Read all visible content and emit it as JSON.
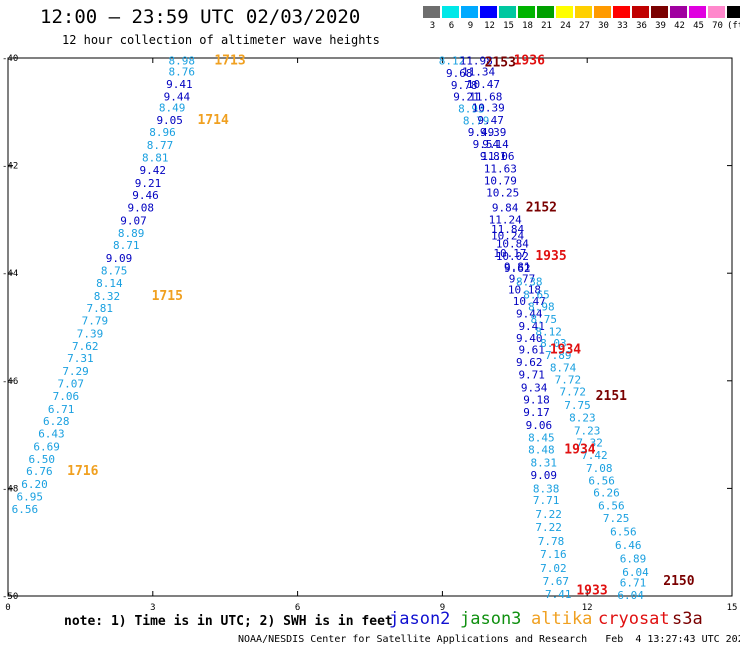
{
  "header": {
    "title": "12:00 – 23:59 UTC 02/03/2020",
    "subtitle": "12 hour collection of altimeter wave heights"
  },
  "colorbar": {
    "swatches": [
      "#6e6e6e",
      "#00e8e8",
      "#00aaff",
      "#0000ff",
      "#00c8a0",
      "#00b400",
      "#00a000",
      "#ffff00",
      "#ffd000",
      "#ff9a00",
      "#ff0000",
      "#c00000",
      "#7a0000",
      "#a000a0",
      "#e000e0",
      "#ff88cc",
      "#000000"
    ],
    "labels": [
      "3",
      "6",
      "9",
      "12",
      "15",
      "18",
      "21",
      "24",
      "27",
      "30",
      "33",
      "36",
      "39",
      "42",
      "45",
      "70",
      "(ft)"
    ]
  },
  "note": "note: 1) Time is in UTC; 2) SWH is in feet",
  "footer": "NOAA/NESDIS Center for Satellite Applications and Research   Feb  4 13:27:43 UTC 2020",
  "legend": [
    {
      "name": "jason2",
      "color": "#1010d0"
    },
    {
      "name": "jason3",
      "color": "#109010"
    },
    {
      "name": "altika",
      "color": "#f0a020"
    },
    {
      "name": "cryosat",
      "color": "#e01010"
    },
    {
      "name": "s3a",
      "color": "#7a0000"
    }
  ],
  "chart_data": {
    "type": "scatter",
    "x_ticks": [
      "0",
      "3",
      "6",
      "9",
      "12",
      "15"
    ],
    "y_ticks": [
      "-40",
      "-42",
      "-44",
      "-46",
      "-48",
      "-50"
    ],
    "xlim": [
      0,
      15
    ],
    "ylim": [
      -50,
      -40
    ],
    "colors": {
      "cyan": "#1aa0e0",
      "blue": "#0000c0",
      "orange": "#f0a020",
      "red": "#e01010",
      "darkred": "#7a0000"
    },
    "points": [
      {
        "x": 3.6,
        "y": -40.05,
        "t": "8.98",
        "c": "cyan"
      },
      {
        "x": 3.6,
        "y": -40.25,
        "t": "8.76",
        "c": "cyan"
      },
      {
        "x": 3.55,
        "y": -40.48,
        "t": "9.41",
        "c": "blue"
      },
      {
        "x": 3.5,
        "y": -40.72,
        "t": "9.44",
        "c": "blue"
      },
      {
        "x": 3.4,
        "y": -40.92,
        "t": "8.49",
        "c": "cyan"
      },
      {
        "x": 3.35,
        "y": -41.15,
        "t": "9.05",
        "c": "blue"
      },
      {
        "x": 3.2,
        "y": -41.38,
        "t": "8.96",
        "c": "cyan"
      },
      {
        "x": 3.15,
        "y": -41.62,
        "t": "8.77",
        "c": "cyan"
      },
      {
        "x": 3.05,
        "y": -41.85,
        "t": "8.81",
        "c": "cyan"
      },
      {
        "x": 3.0,
        "y": -42.08,
        "t": "9.42",
        "c": "blue"
      },
      {
        "x": 2.9,
        "y": -42.32,
        "t": "9.21",
        "c": "blue"
      },
      {
        "x": 2.85,
        "y": -42.55,
        "t": "9.46",
        "c": "blue"
      },
      {
        "x": 2.75,
        "y": -42.78,
        "t": "9.08",
        "c": "blue"
      },
      {
        "x": 2.6,
        "y": -43.02,
        "t": "9.07",
        "c": "blue"
      },
      {
        "x": 2.55,
        "y": -43.25,
        "t": "8.89",
        "c": "cyan"
      },
      {
        "x": 2.45,
        "y": -43.48,
        "t": "8.71",
        "c": "cyan"
      },
      {
        "x": 2.3,
        "y": -43.72,
        "t": "9.09",
        "c": "blue"
      },
      {
        "x": 2.2,
        "y": -43.95,
        "t": "8.75",
        "c": "cyan"
      },
      {
        "x": 2.1,
        "y": -44.18,
        "t": "8.14",
        "c": "cyan"
      },
      {
        "x": 2.05,
        "y": -44.42,
        "t": "8.32",
        "c": "cyan"
      },
      {
        "x": 1.9,
        "y": -44.65,
        "t": "7.81",
        "c": "cyan"
      },
      {
        "x": 1.8,
        "y": -44.88,
        "t": "7.79",
        "c": "cyan"
      },
      {
        "x": 1.7,
        "y": -45.12,
        "t": "7.39",
        "c": "cyan"
      },
      {
        "x": 1.6,
        "y": -45.35,
        "t": "7.62",
        "c": "cyan"
      },
      {
        "x": 1.5,
        "y": -45.58,
        "t": "7.31",
        "c": "cyan"
      },
      {
        "x": 1.4,
        "y": -45.82,
        "t": "7.29",
        "c": "cyan"
      },
      {
        "x": 1.3,
        "y": -46.05,
        "t": "7.07",
        "c": "cyan"
      },
      {
        "x": 1.2,
        "y": -46.28,
        "t": "7.06",
        "c": "cyan"
      },
      {
        "x": 1.1,
        "y": -46.52,
        "t": "6.71",
        "c": "cyan"
      },
      {
        "x": 1.0,
        "y": -46.75,
        "t": "6.28",
        "c": "cyan"
      },
      {
        "x": 0.9,
        "y": -46.98,
        "t": "6.43",
        "c": "cyan"
      },
      {
        "x": 0.8,
        "y": -47.22,
        "t": "6.69",
        "c": "cyan"
      },
      {
        "x": 0.7,
        "y": -47.45,
        "t": "6.50",
        "c": "cyan"
      },
      {
        "x": 0.65,
        "y": -47.68,
        "t": "6.76",
        "c": "cyan"
      },
      {
        "x": 0.55,
        "y": -47.92,
        "t": "6.20",
        "c": "cyan"
      },
      {
        "x": 0.45,
        "y": -48.15,
        "t": "6.95",
        "c": "cyan"
      },
      {
        "x": 0.35,
        "y": -48.38,
        "t": "6.56",
        "c": "cyan"
      },
      {
        "x": 4.6,
        "y": -40.05,
        "t": "1713",
        "c": "orange",
        "label": true
      },
      {
        "x": 4.25,
        "y": -41.15,
        "t": "1714",
        "c": "orange",
        "label": true
      },
      {
        "x": 3.3,
        "y": -44.42,
        "t": "1715",
        "c": "orange",
        "label": true
      },
      {
        "x": 1.55,
        "y": -47.68,
        "t": "1716",
        "c": "orange",
        "label": true
      },
      {
        "x": 9.2,
        "y": -40.05,
        "t": "8.12",
        "c": "cyan"
      },
      {
        "x": 9.35,
        "y": -40.28,
        "t": "9.68",
        "c": "blue"
      },
      {
        "x": 9.45,
        "y": -40.5,
        "t": "9.78",
        "c": "blue"
      },
      {
        "x": 9.5,
        "y": -40.72,
        "t": "9.21",
        "c": "blue"
      },
      {
        "x": 9.6,
        "y": -40.94,
        "t": "8.93",
        "c": "cyan"
      },
      {
        "x": 9.7,
        "y": -41.16,
        "t": "8.79",
        "c": "cyan"
      },
      {
        "x": 9.8,
        "y": -41.38,
        "t": "9.49",
        "c": "blue"
      },
      {
        "x": 9.9,
        "y": -41.6,
        "t": "9.54",
        "c": "blue"
      },
      {
        "x": 10.05,
        "y": -41.82,
        "t": "9.81",
        "c": "blue"
      },
      {
        "x": 10.2,
        "y": -42.28,
        "t": "10.79",
        "c": "blue"
      },
      {
        "x": 10.3,
        "y": -42.78,
        "t": "9.84",
        "c": "blue"
      },
      {
        "x": 10.35,
        "y": -43.3,
        "t": "10.24",
        "c": "blue"
      },
      {
        "x": 10.4,
        "y": -43.62,
        "t": "10.17",
        "c": "blue"
      },
      {
        "x": 10.55,
        "y": -43.88,
        "t": "9.81",
        "c": "blue"
      },
      {
        "x": 10.65,
        "y": -44.1,
        "t": "9.77",
        "c": "blue"
      },
      {
        "x": 10.7,
        "y": -44.3,
        "t": "10.18",
        "c": "blue"
      },
      {
        "x": 10.8,
        "y": -44.52,
        "t": "10.47",
        "c": "blue"
      },
      {
        "x": 10.8,
        "y": -44.75,
        "t": "9.44",
        "c": "blue"
      },
      {
        "x": 10.85,
        "y": -44.98,
        "t": "9.41",
        "c": "blue"
      },
      {
        "x": 10.8,
        "y": -45.2,
        "t": "9.40",
        "c": "blue"
      },
      {
        "x": 10.85,
        "y": -45.42,
        "t": "9.61",
        "c": "blue"
      },
      {
        "x": 10.8,
        "y": -45.65,
        "t": "9.62",
        "c": "blue"
      },
      {
        "x": 10.85,
        "y": -45.88,
        "t": "9.71",
        "c": "blue"
      },
      {
        "x": 10.9,
        "y": -46.12,
        "t": "9.34",
        "c": "blue"
      },
      {
        "x": 10.95,
        "y": -46.35,
        "t": "9.18",
        "c": "blue"
      },
      {
        "x": 10.95,
        "y": -46.58,
        "t": "9.17",
        "c": "blue"
      },
      {
        "x": 11.0,
        "y": -46.82,
        "t": "9.06",
        "c": "blue"
      },
      {
        "x": 11.05,
        "y": -47.05,
        "t": "8.45",
        "c": "cyan"
      },
      {
        "x": 11.05,
        "y": -47.28,
        "t": "8.48",
        "c": "cyan"
      },
      {
        "x": 11.1,
        "y": -47.52,
        "t": "8.31",
        "c": "cyan"
      },
      {
        "x": 11.1,
        "y": -47.75,
        "t": "9.09",
        "c": "blue"
      },
      {
        "x": 11.15,
        "y": -48.0,
        "t": "8.38",
        "c": "cyan"
      },
      {
        "x": 11.15,
        "y": -48.22,
        "t": "7.71",
        "c": "cyan"
      },
      {
        "x": 11.2,
        "y": -48.48,
        "t": "7.22",
        "c": "cyan"
      },
      {
        "x": 11.2,
        "y": -48.72,
        "t": "7.22",
        "c": "cyan"
      },
      {
        "x": 11.25,
        "y": -48.98,
        "t": "7.78",
        "c": "cyan"
      },
      {
        "x": 11.3,
        "y": -49.22,
        "t": "7.16",
        "c": "cyan"
      },
      {
        "x": 11.3,
        "y": -49.48,
        "t": "7.02",
        "c": "cyan"
      },
      {
        "x": 11.35,
        "y": -49.72,
        "t": "7.67",
        "c": "cyan"
      },
      {
        "x": 11.4,
        "y": -49.96,
        "t": "7.41",
        "c": "cyan"
      },
      {
        "x": 9.7,
        "y": -40.05,
        "t": "11.98",
        "c": "blue"
      },
      {
        "x": 9.75,
        "y": -40.25,
        "t": "11.34",
        "c": "blue"
      },
      {
        "x": 9.85,
        "y": -40.48,
        "t": "10.47",
        "c": "blue"
      },
      {
        "x": 9.9,
        "y": -40.72,
        "t": "11.68",
        "c": "blue"
      },
      {
        "x": 9.95,
        "y": -40.92,
        "t": "10.39",
        "c": "blue"
      },
      {
        "x": 10.0,
        "y": -41.15,
        "t": "9.47",
        "c": "blue"
      },
      {
        "x": 10.05,
        "y": -41.38,
        "t": "9.39",
        "c": "blue"
      },
      {
        "x": 10.1,
        "y": -41.6,
        "t": "9.14",
        "c": "blue"
      },
      {
        "x": 10.15,
        "y": -41.82,
        "t": "11.06",
        "c": "blue"
      },
      {
        "x": 10.2,
        "y": -42.05,
        "t": "11.63",
        "c": "blue"
      },
      {
        "x": 10.25,
        "y": -42.5,
        "t": "10.25",
        "c": "blue"
      },
      {
        "x": 10.3,
        "y": -43.0,
        "t": "11.24",
        "c": "blue"
      },
      {
        "x": 10.35,
        "y": -43.18,
        "t": "11.84",
        "c": "blue"
      },
      {
        "x": 10.45,
        "y": -43.45,
        "t": "10.84",
        "c": "blue"
      },
      {
        "x": 10.45,
        "y": -43.68,
        "t": "10.02",
        "c": "blue"
      },
      {
        "x": 10.55,
        "y": -43.9,
        "t": "9.62",
        "c": "blue"
      },
      {
        "x": 10.8,
        "y": -44.15,
        "t": "8.38",
        "c": "cyan"
      },
      {
        "x": 10.95,
        "y": -44.4,
        "t": "8.65",
        "c": "cyan"
      },
      {
        "x": 11.05,
        "y": -44.62,
        "t": "8.98",
        "c": "cyan"
      },
      {
        "x": 11.1,
        "y": -44.85,
        "t": "8.75",
        "c": "cyan"
      },
      {
        "x": 11.2,
        "y": -45.08,
        "t": "8.12",
        "c": "cyan"
      },
      {
        "x": 11.3,
        "y": -45.3,
        "t": "8.03",
        "c": "cyan"
      },
      {
        "x": 11.4,
        "y": -45.52,
        "t": "7.89",
        "c": "cyan"
      },
      {
        "x": 11.5,
        "y": -45.75,
        "t": "8.74",
        "c": "cyan"
      },
      {
        "x": 11.6,
        "y": -45.98,
        "t": "7.72",
        "c": "cyan"
      },
      {
        "x": 11.7,
        "y": -46.2,
        "t": "7.72",
        "c": "cyan"
      },
      {
        "x": 11.8,
        "y": -46.45,
        "t": "7.75",
        "c": "cyan"
      },
      {
        "x": 11.9,
        "y": -46.68,
        "t": "8.23",
        "c": "cyan"
      },
      {
        "x": 12.0,
        "y": -46.92,
        "t": "7.23",
        "c": "cyan"
      },
      {
        "x": 12.05,
        "y": -47.15,
        "t": "7.32",
        "c": "cyan"
      },
      {
        "x": 12.15,
        "y": -47.38,
        "t": "7.42",
        "c": "cyan"
      },
      {
        "x": 12.25,
        "y": -47.62,
        "t": "7.08",
        "c": "cyan"
      },
      {
        "x": 12.3,
        "y": -47.85,
        "t": "6.56",
        "c": "cyan"
      },
      {
        "x": 12.4,
        "y": -48.08,
        "t": "6.26",
        "c": "cyan"
      },
      {
        "x": 12.5,
        "y": -48.32,
        "t": "6.56",
        "c": "cyan"
      },
      {
        "x": 12.6,
        "y": -48.55,
        "t": "7.25",
        "c": "cyan"
      },
      {
        "x": 12.75,
        "y": -48.8,
        "t": "6.56",
        "c": "cyan"
      },
      {
        "x": 12.85,
        "y": -49.05,
        "t": "6.46",
        "c": "cyan"
      },
      {
        "x": 12.95,
        "y": -49.3,
        "t": "6.89",
        "c": "cyan"
      },
      {
        "x": 13.0,
        "y": -49.55,
        "t": "6.04",
        "c": "cyan"
      },
      {
        "x": 12.95,
        "y": -49.75,
        "t": "6.71",
        "c": "cyan"
      },
      {
        "x": 12.9,
        "y": -49.98,
        "t": "6.04",
        "c": "cyan"
      },
      {
        "x": 10.8,
        "y": -40.05,
        "t": "1936",
        "c": "red",
        "label": true
      },
      {
        "x": 10.2,
        "y": -40.08,
        "t": "2153",
        "c": "darkred",
        "label": true
      },
      {
        "x": 11.05,
        "y": -42.78,
        "t": "2152",
        "c": "darkred",
        "label": true
      },
      {
        "x": 11.25,
        "y": -43.68,
        "t": "1935",
        "c": "red",
        "label": true
      },
      {
        "x": 11.55,
        "y": -45.42,
        "t": "1934",
        "c": "red",
        "label": true
      },
      {
        "x": 12.5,
        "y": -46.28,
        "t": "2151",
        "c": "darkred",
        "label": true
      },
      {
        "x": 11.85,
        "y": -47.28,
        "t": "1934",
        "c": "red",
        "label": true
      },
      {
        "x": 12.1,
        "y": -49.9,
        "t": "1933",
        "c": "red",
        "label": true
      },
      {
        "x": 13.9,
        "y": -49.72,
        "t": "2150",
        "c": "darkred",
        "label": true
      }
    ]
  }
}
